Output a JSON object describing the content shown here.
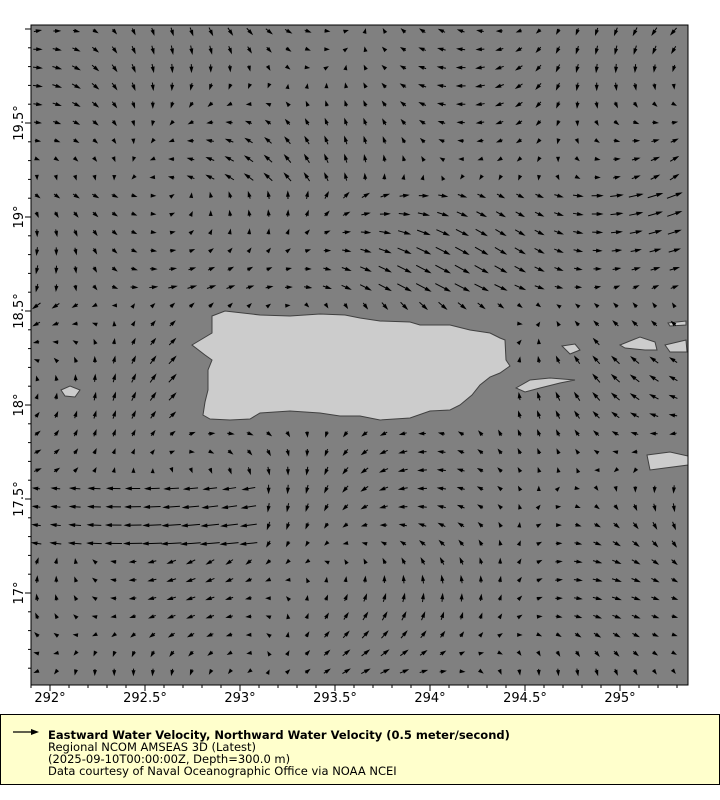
{
  "map": {
    "lon_ticks": [
      "292°",
      "292.5°",
      "293°",
      "293.5°",
      "294°",
      "294.5°",
      "295°"
    ],
    "lat_ticks": [
      "17°",
      "17.5°",
      "18°",
      "18.5°",
      "19°",
      "19.5°"
    ],
    "lon_range": [
      291.9,
      295.36
    ],
    "lat_range": [
      16.51,
      20.02
    ],
    "colors": {
      "ocean": "#808080",
      "land": "#cccccc",
      "coast": "#404040",
      "vector": "#000000",
      "legend_bg": "#ffffcc"
    }
  },
  "legend": {
    "vector_icon": "arrow-right-icon",
    "title": "Eastward Water Velocity, Northward Water Velocity (0.5 meter/second)",
    "dataset": "Regional NCOM AMSEAS 3D (Latest)",
    "time_depth": "(2025-09-10T00:00:00Z, Depth=300.0 m)",
    "credit": "Data courtesy of Naval Oceanographic Office via NOAA NCEI"
  }
}
